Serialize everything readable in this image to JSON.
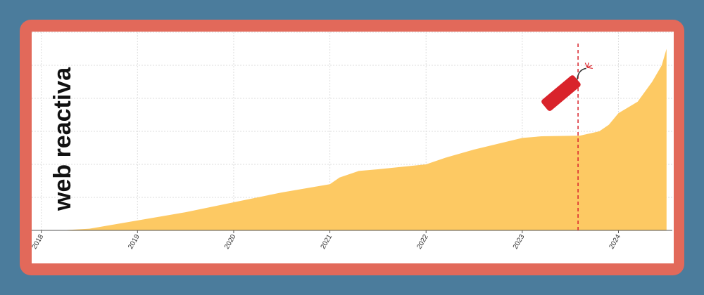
{
  "logo": "web reactiva",
  "chart_data": {
    "type": "area",
    "x": [
      2018.2,
      2018.5,
      2019.0,
      2019.5,
      2020.0,
      2020.5,
      2021.0,
      2021.1,
      2021.3,
      2021.5,
      2022.0,
      2022.2,
      2022.5,
      2023.0,
      2023.2,
      2023.6,
      2023.8,
      2023.9,
      2024.0,
      2024.2,
      2024.35,
      2024.45,
      2024.5
    ],
    "values": [
      0,
      0.05,
      0.3,
      0.55,
      0.85,
      1.15,
      1.4,
      1.6,
      1.8,
      1.85,
      2.0,
      2.2,
      2.45,
      2.8,
      2.85,
      2.87,
      3.0,
      3.2,
      3.55,
      3.9,
      4.5,
      5.0,
      5.5
    ],
    "color": "#fdc963",
    "xlim": [
      2017.9,
      2024.56
    ],
    "xticks": [
      2018,
      2019,
      2020,
      2021,
      2022,
      2023,
      2024
    ],
    "ylim": [
      0,
      6
    ],
    "yticks": [
      0,
      1,
      2,
      3,
      4,
      5,
      6
    ],
    "grid": true,
    "marker_line": {
      "x": 2023.58,
      "color": "#d9232b"
    }
  }
}
